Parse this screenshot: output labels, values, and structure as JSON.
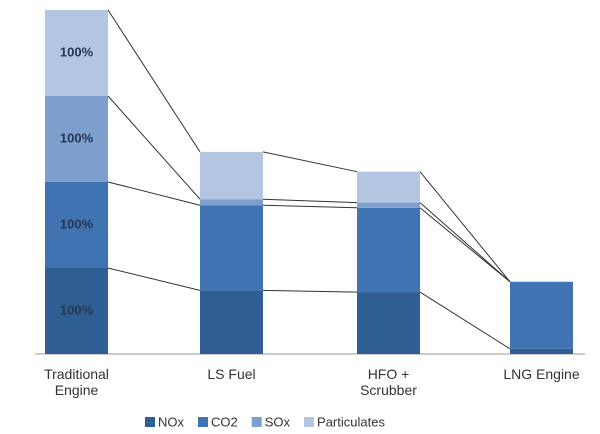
{
  "chart_data": {
    "type": "stacked_bar",
    "categories": [
      "Traditional Engine",
      "LS Fuel",
      "HFO + Scrubber",
      "LNG Engine"
    ],
    "series": [
      {
        "name": "NOx",
        "color": "#2f5f92",
        "values": [
          100,
          74,
          72,
          6
        ],
        "value_labels": [
          "100%",
          null,
          null,
          null
        ]
      },
      {
        "name": "CO2",
        "color": "#3f73b2",
        "values": [
          100,
          99,
          98,
          78
        ],
        "value_labels": [
          "100%",
          null,
          null,
          null
        ]
      },
      {
        "name": "SOx",
        "color": "#7c9fcd",
        "values": [
          100,
          7,
          6,
          0
        ],
        "value_labels": [
          "100%",
          null,
          null,
          null
        ]
      },
      {
        "name": "Particulates",
        "color": "#b3c5e0",
        "values": [
          100,
          55,
          36,
          0
        ],
        "value_labels": [
          "100%",
          null,
          null,
          null
        ]
      }
    ]
  }
}
